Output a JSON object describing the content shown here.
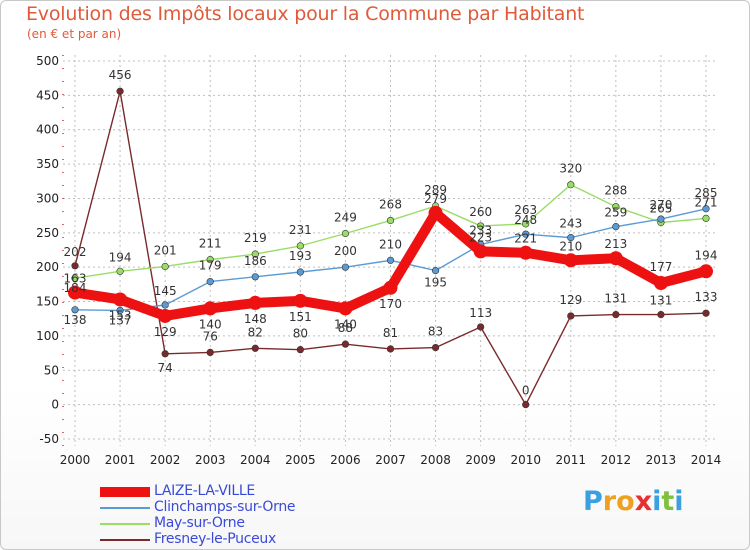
{
  "header": {
    "title": "Evolution des Impôts locaux pour la Commune par Habitant",
    "subtitle": "(en € et par an)"
  },
  "colors": {
    "title": "#e05a3a",
    "grid": "#bfbfbf",
    "legend_text": "#3a4ad8"
  },
  "chart_data": {
    "type": "line",
    "title": "Evolution des Impôts locaux pour la Commune par Habitant",
    "subtitle": "(en € et par an)",
    "xlabel": "",
    "ylabel": "",
    "x": [
      "2000",
      "2001",
      "2002",
      "2003",
      "2004",
      "2005",
      "2006",
      "2007",
      "2008",
      "2009",
      "2010",
      "2011",
      "2012",
      "2013",
      "2014"
    ],
    "ylim": [
      -50,
      500
    ],
    "yticks": [
      -50,
      0,
      50,
      100,
      150,
      200,
      250,
      300,
      350,
      400,
      450,
      500
    ],
    "grid": true,
    "legend_position": "bottom-left",
    "series": [
      {
        "name": "LAIZE-LA-VILLE",
        "color": "#ee1111",
        "values": [
          163,
          153,
          129,
          140,
          148,
          151,
          140,
          170,
          279,
          223,
          221,
          210,
          213,
          177,
          194
        ],
        "labels": [
          "163",
          "153",
          "129",
          "140",
          "148",
          "151",
          "140",
          "170",
          "279",
          "223",
          "221",
          "210",
          "213",
          "177",
          "194"
        ]
      },
      {
        "name": "Clinchamps-sur-Orne",
        "color": "#5b9bd5",
        "values": [
          138,
          137,
          145,
          179,
          186,
          193,
          200,
          210,
          195,
          233,
          248,
          243,
          259,
          270,
          285
        ],
        "labels": [
          "138",
          "137",
          "145",
          "179",
          "186",
          "193",
          "200",
          "210",
          "195",
          "233",
          "248",
          "243",
          "259",
          "270",
          "285"
        ]
      },
      {
        "name": "May-sur-Orne",
        "color": "#99dd66",
        "values": [
          184,
          194,
          201,
          211,
          219,
          231,
          249,
          268,
          289,
          260,
          263,
          320,
          288,
          265,
          271
        ],
        "labels": [
          "184",
          "194",
          "201",
          "211",
          "219",
          "231",
          "249",
          "268",
          "289",
          "260",
          "263",
          "320",
          "288",
          "265",
          "271"
        ]
      },
      {
        "name": "Fresney-le-Puceux",
        "color": "#7a2a2a",
        "values": [
          202,
          456,
          74,
          76,
          82,
          80,
          88,
          81,
          83,
          113,
          0,
          129,
          131,
          131,
          133
        ],
        "labels": [
          "202",
          "456",
          "74",
          "76",
          "82",
          "80",
          "88",
          "81",
          "83",
          "113",
          "0",
          "129",
          "131",
          "131",
          "133"
        ]
      }
    ]
  },
  "logo": {
    "letters": [
      "P",
      "r",
      "o",
      "x",
      "i",
      "t",
      "i"
    ],
    "colors": [
      "#3aa0e0",
      "#f0a020",
      "#f0a020",
      "#e83030",
      "#3aa0e0",
      "#80c040",
      "#3aa0e0"
    ]
  }
}
